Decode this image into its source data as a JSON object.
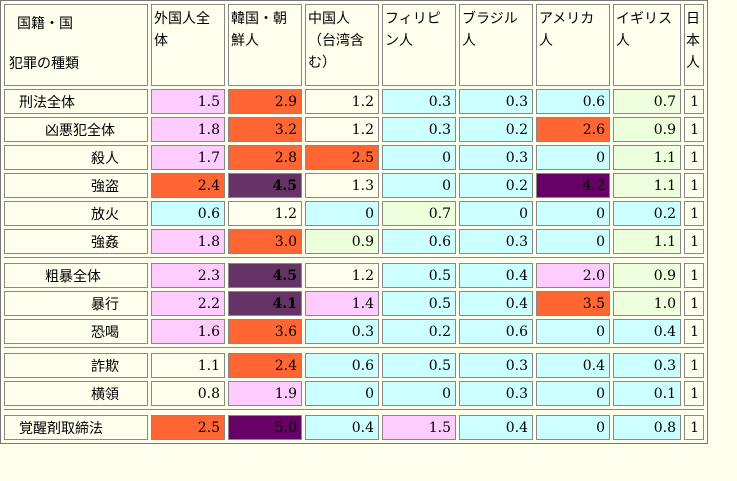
{
  "header": {
    "corner_top": "国籍・国",
    "corner_bottom": "犯罪の種類",
    "columns": [
      "外国人全体",
      "韓国・朝鮮人",
      "中国人（台湾含む）",
      "フィリピン人",
      "ブラジル人",
      "アメリカ人",
      "イギリス人",
      "日本人"
    ]
  },
  "groups": [
    [
      {
        "name": "刑法全体",
        "indent": 1,
        "cells": [
          {
            "v": "1.5",
            "c": "pink"
          },
          {
            "v": "2.9",
            "c": "orange"
          },
          {
            "v": "1.2",
            "c": "plain"
          },
          {
            "v": "0.3",
            "c": "cyan"
          },
          {
            "v": "0.3",
            "c": "cyan"
          },
          {
            "v": "0.6",
            "c": "cyan"
          },
          {
            "v": "0.7",
            "c": "green"
          },
          {
            "v": "1",
            "c": "plain"
          }
        ]
      },
      {
        "name": "凶悪犯全体",
        "indent": 2,
        "cells": [
          {
            "v": "1.8",
            "c": "pink"
          },
          {
            "v": "3.2",
            "c": "orange"
          },
          {
            "v": "1.2",
            "c": "plain"
          },
          {
            "v": "0.3",
            "c": "cyan"
          },
          {
            "v": "0.2",
            "c": "cyan"
          },
          {
            "v": "2.6",
            "c": "orange"
          },
          {
            "v": "0.9",
            "c": "green"
          },
          {
            "v": "1",
            "c": "plain"
          }
        ]
      },
      {
        "name": "殺人",
        "indent": 3,
        "cells": [
          {
            "v": "1.7",
            "c": "pink"
          },
          {
            "v": "2.8",
            "c": "orange"
          },
          {
            "v": "2.5",
            "c": "orange"
          },
          {
            "v": "0",
            "c": "cyan"
          },
          {
            "v": "0.3",
            "c": "cyan"
          },
          {
            "v": "0",
            "c": "cyan"
          },
          {
            "v": "1.1",
            "c": "green"
          },
          {
            "v": "1",
            "c": "plain"
          }
        ]
      },
      {
        "name": "強盗",
        "indent": 3,
        "cells": [
          {
            "v": "2.4",
            "c": "orange"
          },
          {
            "v": "4.5",
            "c": "purple"
          },
          {
            "v": "1.3",
            "c": "plain"
          },
          {
            "v": "0",
            "c": "cyan"
          },
          {
            "v": "0.2",
            "c": "cyan"
          },
          {
            "v": "4.2",
            "c": "purple2"
          },
          {
            "v": "1.1",
            "c": "green"
          },
          {
            "v": "1",
            "c": "plain"
          }
        ]
      },
      {
        "name": "放火",
        "indent": 3,
        "cells": [
          {
            "v": "0.6",
            "c": "cyan"
          },
          {
            "v": "1.2",
            "c": "plain"
          },
          {
            "v": "0",
            "c": "cyan"
          },
          {
            "v": "0.7",
            "c": "green"
          },
          {
            "v": "0",
            "c": "cyan"
          },
          {
            "v": "0",
            "c": "cyan"
          },
          {
            "v": "0.2",
            "c": "cyan"
          },
          {
            "v": "1",
            "c": "plain"
          }
        ]
      },
      {
        "name": "強姦",
        "indent": 3,
        "cells": [
          {
            "v": "1.8",
            "c": "pink"
          },
          {
            "v": "3.0",
            "c": "orange"
          },
          {
            "v": "0.9",
            "c": "green"
          },
          {
            "v": "0.6",
            "c": "cyan"
          },
          {
            "v": "0.3",
            "c": "cyan"
          },
          {
            "v": "0",
            "c": "cyan"
          },
          {
            "v": "1.1",
            "c": "green"
          },
          {
            "v": "1",
            "c": "plain"
          }
        ]
      }
    ],
    [
      {
        "name": "粗暴全体",
        "indent": 2,
        "cells": [
          {
            "v": "2.3",
            "c": "pink"
          },
          {
            "v": "4.5",
            "c": "purple"
          },
          {
            "v": "1.2",
            "c": "plain"
          },
          {
            "v": "0.5",
            "c": "cyan"
          },
          {
            "v": "0.4",
            "c": "cyan"
          },
          {
            "v": "2.0",
            "c": "pink"
          },
          {
            "v": "0.9",
            "c": "green"
          },
          {
            "v": "1",
            "c": "plain"
          }
        ]
      },
      {
        "name": "暴行",
        "indent": 3,
        "cells": [
          {
            "v": "2.2",
            "c": "pink"
          },
          {
            "v": "4.1",
            "c": "purple"
          },
          {
            "v": "1.4",
            "c": "pink"
          },
          {
            "v": "0.5",
            "c": "cyan"
          },
          {
            "v": "0.4",
            "c": "cyan"
          },
          {
            "v": "3.5",
            "c": "orange"
          },
          {
            "v": "1.0",
            "c": "green"
          },
          {
            "v": "1",
            "c": "plain"
          }
        ]
      },
      {
        "name": "恐喝",
        "indent": 3,
        "cells": [
          {
            "v": "1.6",
            "c": "pink"
          },
          {
            "v": "3.6",
            "c": "orange"
          },
          {
            "v": "0.3",
            "c": "cyan"
          },
          {
            "v": "0.2",
            "c": "cyan"
          },
          {
            "v": "0.6",
            "c": "cyan"
          },
          {
            "v": "0",
            "c": "cyan"
          },
          {
            "v": "0.4",
            "c": "cyan"
          },
          {
            "v": "1",
            "c": "plain"
          }
        ]
      }
    ],
    [
      {
        "name": "詐欺",
        "indent": 3,
        "cells": [
          {
            "v": "1.1",
            "c": "plain"
          },
          {
            "v": "2.4",
            "c": "orange"
          },
          {
            "v": "0.6",
            "c": "cyan"
          },
          {
            "v": "0.5",
            "c": "cyan"
          },
          {
            "v": "0.3",
            "c": "cyan"
          },
          {
            "v": "0.4",
            "c": "cyan"
          },
          {
            "v": "0.3",
            "c": "cyan"
          },
          {
            "v": "1",
            "c": "plain"
          }
        ]
      },
      {
        "name": "横領",
        "indent": 3,
        "cells": [
          {
            "v": "0.8",
            "c": "plain"
          },
          {
            "v": "1.9",
            "c": "pink"
          },
          {
            "v": "0",
            "c": "cyan"
          },
          {
            "v": "0",
            "c": "cyan"
          },
          {
            "v": "0.3",
            "c": "cyan"
          },
          {
            "v": "0",
            "c": "cyan"
          },
          {
            "v": "0.1",
            "c": "cyan"
          },
          {
            "v": "1",
            "c": "plain"
          }
        ]
      }
    ],
    [
      {
        "name": "覚醒剤取締法",
        "indent": 1,
        "cells": [
          {
            "v": "2.5",
            "c": "orange"
          },
          {
            "v": "5.0",
            "c": "purple2"
          },
          {
            "v": "0.4",
            "c": "cyan"
          },
          {
            "v": "1.5",
            "c": "pink"
          },
          {
            "v": "0.4",
            "c": "cyan"
          },
          {
            "v": "0",
            "c": "cyan"
          },
          {
            "v": "0.8",
            "c": "cyan"
          },
          {
            "v": "1",
            "c": "plain"
          }
        ]
      }
    ]
  ],
  "colors": {
    "pink": "#ffccff",
    "cyan": "#ccffff",
    "orange": "#ff6633",
    "purple": "#663366",
    "purple2": "#660066",
    "green": "#eeffdd",
    "plain": "#ffffee"
  }
}
